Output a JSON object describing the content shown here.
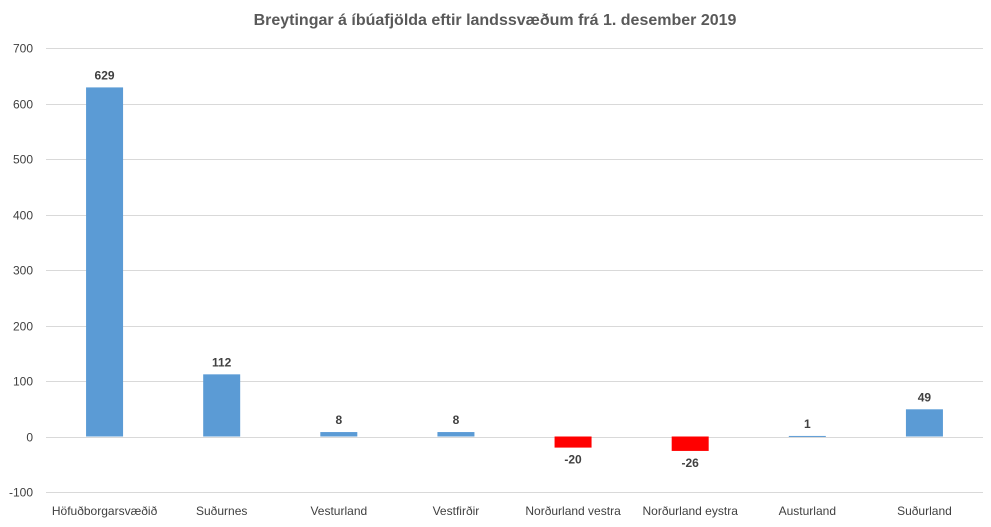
{
  "chart_data": {
    "type": "bar",
    "title": "Breytingar á íbúafjölda eftir landssvæðum frá 1. desember 2019",
    "xlabel": "",
    "ylabel": "",
    "categories": [
      "Höfuðborgarsvæðið",
      "Suðurnes",
      "Vesturland",
      "Vestfirðir",
      "Norðurland vestra",
      "Norðurland eystra",
      "Austurland",
      "Suðurland"
    ],
    "values": [
      629,
      112,
      8,
      8,
      -20,
      -26,
      1,
      49
    ],
    "data_labels": [
      "629",
      "112",
      "8",
      "8",
      "-20",
      "-26",
      "1",
      "49"
    ],
    "ylim": [
      -100,
      700
    ],
    "yticks": [
      -100,
      0,
      100,
      200,
      300,
      400,
      500,
      600,
      700
    ],
    "ytick_labels": [
      "-100",
      "0",
      "100",
      "200",
      "300",
      "400",
      "500",
      "600",
      "700"
    ],
    "grid": true,
    "legend": "none",
    "colors": {
      "positive": "#5b9bd5",
      "negative": "#ff0000",
      "grid": "#d9d9d9",
      "text": "#404040",
      "title": "#595959"
    }
  }
}
